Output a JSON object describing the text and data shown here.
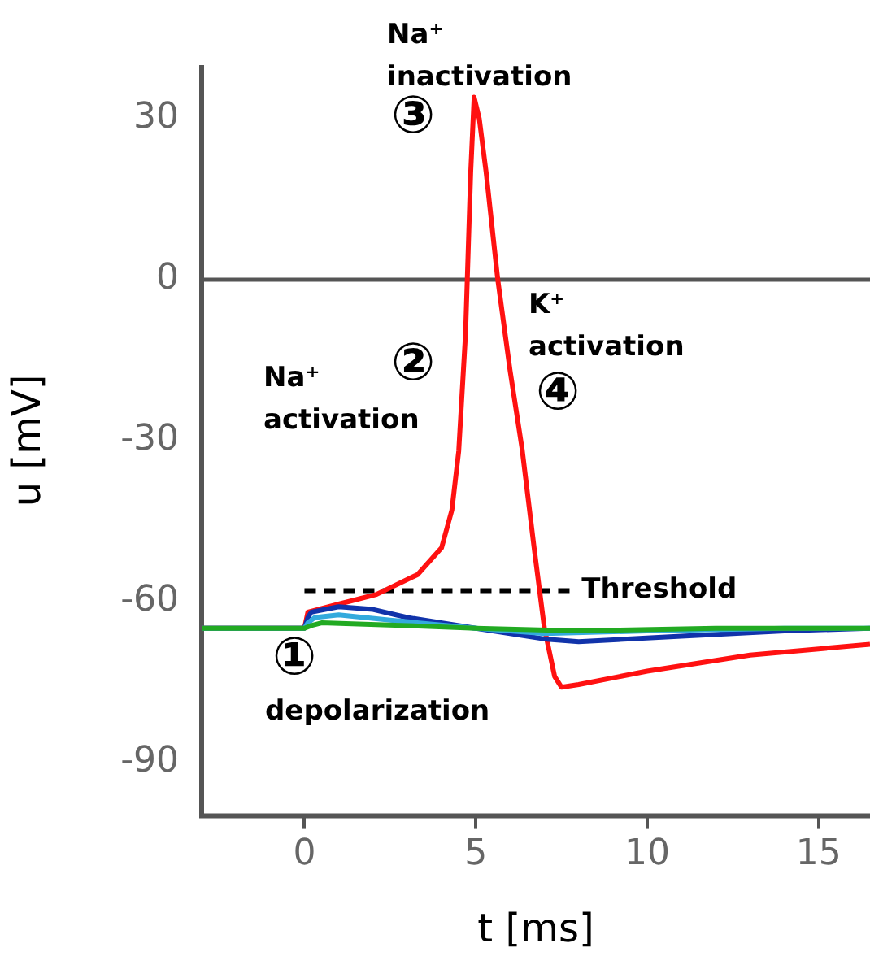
{
  "chart_data": {
    "type": "line",
    "xlabel": "t [ms]",
    "ylabel": "u [mV]",
    "xlim": [
      -3,
      16.5
    ],
    "xticks": [
      0,
      5,
      10,
      15
    ],
    "ylim": [
      -100,
      40
    ],
    "yticks": [
      30,
      0,
      -30,
      -60,
      -90
    ],
    "grid": false,
    "legend": false,
    "marker": "none",
    "ref_lines": [
      {
        "axis": "y",
        "value": 0,
        "color": "#555555"
      }
    ],
    "series": [
      {
        "color": "#22aa22",
        "x": [
          -3,
          0,
          0.2,
          0.5,
          3,
          5,
          8,
          12,
          16.5
        ],
        "values": [
          -65,
          -65,
          -64.5,
          -64,
          -64.5,
          -65,
          -65.5,
          -65,
          -65
        ]
      },
      {
        "color": "#33aadd",
        "x": [
          -3,
          0,
          0.1,
          0.3,
          1,
          2.5,
          5,
          7,
          10,
          14,
          16.5
        ],
        "values": [
          -65,
          -65,
          -64,
          -63,
          -62.5,
          -63.5,
          -65,
          -66,
          -65.5,
          -65,
          -65
        ]
      },
      {
        "color": "#1133aa",
        "x": [
          -3,
          0,
          0.1,
          0.2,
          1,
          2,
          3,
          5,
          7,
          8,
          11,
          14,
          16.5
        ],
        "values": [
          -65,
          -65,
          -63,
          -62,
          -61,
          -61.5,
          -63,
          -65,
          -67,
          -67.5,
          -66.5,
          -65.5,
          -65
        ]
      },
      {
        "color": "#ff1111",
        "x": [
          -3,
          0,
          0.1,
          1,
          2.1,
          3.3,
          4,
          4.3,
          4.5,
          4.7,
          4.85,
          4.95,
          5.1,
          5.3,
          5.64,
          6.0,
          6.35,
          6.7,
          7.0,
          7.3,
          7.5,
          8,
          10,
          13,
          16.5
        ],
        "values": [
          -65,
          -65,
          -62,
          -60.5,
          -58.7,
          -55,
          -50,
          -43,
          -32,
          -10,
          20,
          34,
          30,
          20,
          0,
          -17,
          -31.6,
          -50,
          -65,
          -74,
          -76,
          -75.5,
          -73,
          -70,
          -68
        ]
      },
      {
        "name": "Threshold",
        "line_style": "dashed",
        "color": "#000000",
        "x": [
          0,
          7.8
        ],
        "values": [
          -58,
          -58
        ]
      }
    ],
    "annotations": [
      "Na⁺ inactivation",
      "③",
      "②",
      "Na⁺ activation",
      "K⁺ activation",
      "④",
      "①",
      "depolarization"
    ]
  }
}
